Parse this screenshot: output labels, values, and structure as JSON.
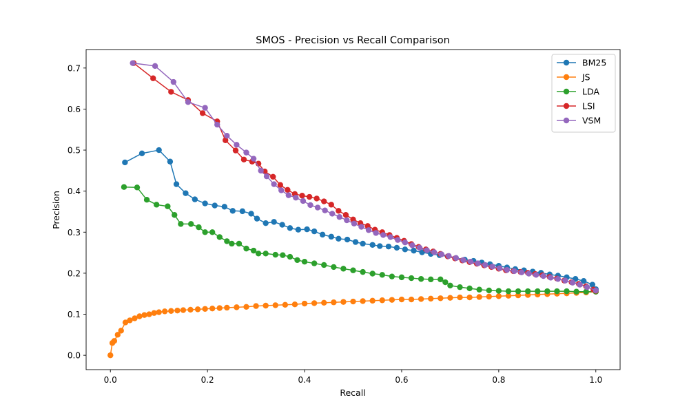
{
  "chart_data": {
    "type": "line",
    "title": "SMOS - Precision vs Recall Comparison",
    "xlabel": "Recall",
    "ylabel": "Precision",
    "xlim": [
      -0.05,
      1.05
    ],
    "ylim": [
      -0.035,
      0.745
    ],
    "xticks": [
      0.0,
      0.2,
      0.4,
      0.6,
      0.8,
      1.0
    ],
    "xtick_labels": [
      "0.0",
      "0.2",
      "0.4",
      "0.6",
      "0.8",
      "1.0"
    ],
    "yticks": [
      0.0,
      0.1,
      0.2,
      0.3,
      0.4,
      0.5,
      0.6,
      0.7
    ],
    "ytick_labels": [
      "0.0",
      "0.1",
      "0.2",
      "0.3",
      "0.4",
      "0.5",
      "0.6",
      "0.7"
    ],
    "grid": false,
    "legend_position": "top-right",
    "series": [
      {
        "name": "BM25",
        "color": "#1f77b4",
        "x": [
          0.03,
          0.065,
          0.1,
          0.123,
          0.136,
          0.155,
          0.174,
          0.195,
          0.215,
          0.235,
          0.252,
          0.272,
          0.29,
          0.302,
          0.32,
          0.337,
          0.354,
          0.37,
          0.387,
          0.405,
          0.42,
          0.437,
          0.455,
          0.47,
          0.488,
          0.505,
          0.52,
          0.54,
          0.555,
          0.573,
          0.59,
          0.607,
          0.625,
          0.642,
          0.66,
          0.678,
          0.695,
          0.712,
          0.73,
          0.748,
          0.765,
          0.782,
          0.8,
          0.817,
          0.834,
          0.852,
          0.87,
          0.887,
          0.905,
          0.922,
          0.94,
          0.958,
          0.975,
          0.993,
          1.0
        ],
        "y": [
          0.47,
          0.492,
          0.5,
          0.472,
          0.417,
          0.395,
          0.38,
          0.37,
          0.365,
          0.362,
          0.352,
          0.351,
          0.345,
          0.333,
          0.322,
          0.325,
          0.318,
          0.31,
          0.306,
          0.307,
          0.302,
          0.294,
          0.289,
          0.284,
          0.282,
          0.276,
          0.272,
          0.269,
          0.266,
          0.265,
          0.262,
          0.258,
          0.255,
          0.251,
          0.247,
          0.244,
          0.241,
          0.237,
          0.233,
          0.23,
          0.226,
          0.222,
          0.218,
          0.214,
          0.21,
          0.207,
          0.204,
          0.201,
          0.197,
          0.194,
          0.19,
          0.186,
          0.181,
          0.172,
          0.161
        ]
      },
      {
        "name": "JS",
        "color": "#ff7f0e",
        "x": [
          0.0,
          0.004,
          0.008,
          0.015,
          0.022,
          0.031,
          0.04,
          0.05,
          0.06,
          0.07,
          0.08,
          0.09,
          0.1,
          0.112,
          0.125,
          0.138,
          0.15,
          0.165,
          0.18,
          0.195,
          0.21,
          0.225,
          0.24,
          0.26,
          0.28,
          0.3,
          0.32,
          0.34,
          0.36,
          0.38,
          0.4,
          0.42,
          0.44,
          0.46,
          0.48,
          0.5,
          0.52,
          0.54,
          0.56,
          0.58,
          0.6,
          0.62,
          0.64,
          0.66,
          0.68,
          0.7,
          0.72,
          0.74,
          0.76,
          0.78,
          0.8,
          0.82,
          0.84,
          0.86,
          0.88,
          0.9,
          0.92,
          0.94,
          0.96,
          0.98,
          1.0
        ],
        "y": [
          0.0,
          0.03,
          0.035,
          0.05,
          0.06,
          0.08,
          0.085,
          0.09,
          0.095,
          0.098,
          0.1,
          0.103,
          0.105,
          0.107,
          0.108,
          0.109,
          0.11,
          0.111,
          0.112,
          0.113,
          0.114,
          0.115,
          0.116,
          0.117,
          0.118,
          0.12,
          0.121,
          0.122,
          0.123,
          0.124,
          0.126,
          0.127,
          0.128,
          0.129,
          0.13,
          0.131,
          0.132,
          0.133,
          0.134,
          0.135,
          0.136,
          0.136,
          0.137,
          0.138,
          0.139,
          0.14,
          0.141,
          0.141,
          0.142,
          0.143,
          0.144,
          0.145,
          0.146,
          0.147,
          0.148,
          0.149,
          0.15,
          0.151,
          0.152,
          0.153,
          0.155
        ]
      },
      {
        "name": "LDA",
        "color": "#2ca02c",
        "x": [
          0.028,
          0.055,
          0.075,
          0.095,
          0.118,
          0.132,
          0.145,
          0.166,
          0.182,
          0.195,
          0.21,
          0.225,
          0.24,
          0.25,
          0.265,
          0.28,
          0.295,
          0.305,
          0.32,
          0.34,
          0.355,
          0.37,
          0.385,
          0.4,
          0.42,
          0.44,
          0.46,
          0.48,
          0.5,
          0.52,
          0.54,
          0.56,
          0.58,
          0.6,
          0.62,
          0.64,
          0.66,
          0.68,
          0.69,
          0.7,
          0.72,
          0.74,
          0.76,
          0.78,
          0.8,
          0.82,
          0.84,
          0.86,
          0.88,
          0.9,
          0.92,
          0.94,
          0.96,
          0.98,
          1.0
        ],
        "y": [
          0.41,
          0.409,
          0.379,
          0.367,
          0.363,
          0.342,
          0.32,
          0.32,
          0.312,
          0.3,
          0.3,
          0.288,
          0.278,
          0.272,
          0.272,
          0.26,
          0.255,
          0.248,
          0.248,
          0.245,
          0.244,
          0.24,
          0.232,
          0.228,
          0.224,
          0.22,
          0.215,
          0.211,
          0.207,
          0.203,
          0.199,
          0.196,
          0.192,
          0.19,
          0.188,
          0.186,
          0.185,
          0.185,
          0.178,
          0.17,
          0.166,
          0.163,
          0.16,
          0.158,
          0.157,
          0.156,
          0.156,
          0.156,
          0.156,
          0.156,
          0.156,
          0.156,
          0.155,
          0.155,
          0.155
        ]
      },
      {
        "name": "LSI",
        "color": "#d62728",
        "x": [
          0.048,
          0.088,
          0.125,
          0.16,
          0.19,
          0.22,
          0.237,
          0.258,
          0.275,
          0.292,
          0.305,
          0.318,
          0.335,
          0.35,
          0.365,
          0.38,
          0.395,
          0.41,
          0.425,
          0.44,
          0.455,
          0.47,
          0.485,
          0.5,
          0.515,
          0.53,
          0.545,
          0.56,
          0.575,
          0.59,
          0.605,
          0.62,
          0.635,
          0.65,
          0.665,
          0.68,
          0.695,
          0.71,
          0.725,
          0.74,
          0.755,
          0.77,
          0.785,
          0.8,
          0.815,
          0.83,
          0.845,
          0.86,
          0.875,
          0.89,
          0.905,
          0.92,
          0.935,
          0.95,
          0.965,
          0.98,
          0.995,
          1.0
        ],
        "y": [
          0.712,
          0.675,
          0.642,
          0.622,
          0.59,
          0.57,
          0.524,
          0.499,
          0.477,
          0.472,
          0.467,
          0.448,
          0.435,
          0.415,
          0.403,
          0.393,
          0.389,
          0.386,
          0.382,
          0.375,
          0.367,
          0.352,
          0.342,
          0.331,
          0.322,
          0.315,
          0.306,
          0.3,
          0.293,
          0.286,
          0.279,
          0.271,
          0.264,
          0.258,
          0.253,
          0.247,
          0.241,
          0.236,
          0.231,
          0.227,
          0.223,
          0.219,
          0.215,
          0.211,
          0.207,
          0.205,
          0.203,
          0.201,
          0.198,
          0.195,
          0.191,
          0.187,
          0.182,
          0.178,
          0.174,
          0.168,
          0.16,
          0.157
        ]
      },
      {
        "name": "VSM",
        "color": "#9467bd",
        "x": [
          0.046,
          0.092,
          0.13,
          0.16,
          0.195,
          0.22,
          0.24,
          0.26,
          0.28,
          0.295,
          0.31,
          0.322,
          0.337,
          0.352,
          0.367,
          0.382,
          0.397,
          0.412,
          0.427,
          0.442,
          0.457,
          0.472,
          0.487,
          0.502,
          0.517,
          0.532,
          0.547,
          0.562,
          0.577,
          0.592,
          0.607,
          0.622,
          0.637,
          0.652,
          0.667,
          0.682,
          0.697,
          0.712,
          0.727,
          0.742,
          0.757,
          0.772,
          0.787,
          0.802,
          0.817,
          0.832,
          0.847,
          0.862,
          0.877,
          0.892,
          0.907,
          0.922,
          0.937,
          0.952,
          0.967,
          0.982,
          1.0
        ],
        "y": [
          0.712,
          0.705,
          0.666,
          0.617,
          0.603,
          0.562,
          0.535,
          0.513,
          0.494,
          0.479,
          0.45,
          0.436,
          0.417,
          0.402,
          0.39,
          0.384,
          0.376,
          0.366,
          0.36,
          0.353,
          0.345,
          0.337,
          0.329,
          0.321,
          0.313,
          0.305,
          0.298,
          0.293,
          0.288,
          0.281,
          0.275,
          0.268,
          0.262,
          0.256,
          0.251,
          0.246,
          0.242,
          0.237,
          0.232,
          0.228,
          0.224,
          0.22,
          0.216,
          0.212,
          0.208,
          0.205,
          0.202,
          0.199,
          0.196,
          0.193,
          0.189,
          0.186,
          0.182,
          0.177,
          0.172,
          0.166,
          0.158
        ]
      }
    ]
  }
}
